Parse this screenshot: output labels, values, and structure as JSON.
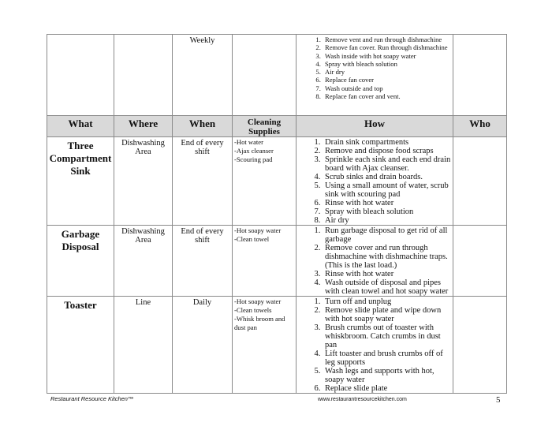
{
  "cont_row": {
    "when": "Weekly",
    "how": [
      "Remove vent and run through dishmachine",
      "Remove fan cover. Run through dishmachine",
      "Wash inside with hot soapy water",
      "Spray with bleach solution",
      "Air dry",
      "Replace fan cover",
      "Wash outside and top",
      "Replace fan cover and vent."
    ]
  },
  "headers": [
    "What",
    "Where",
    "When",
    "Cleaning Supplies",
    "How",
    "Who"
  ],
  "rows": [
    {
      "what": "Three Compartment Sink",
      "where": "Dishwashing Area",
      "when": "End of every shift",
      "supplies": [
        "-Hot water",
        "-Ajax cleanser",
        "-Scouring pad"
      ],
      "how": [
        "Drain sink compartments",
        "Remove and dispose food scraps",
        "Sprinkle each sink and each end drain board with Ajax cleanser.",
        "Scrub sinks and drain boards.",
        "Using a small amount of water, scrub sink with scouring pad",
        "Rinse with hot water",
        "Spray with bleach solution",
        "Air dry"
      ]
    },
    {
      "what": "Garbage Disposal",
      "where": "Dishwashing Area",
      "when": "End of every shift",
      "supplies": [
        "-Hot soapy water",
        "-Clean towel"
      ],
      "how": [
        "Run garbage disposal to get rid of all garbage",
        "Remove cover and run through dishmachine with dishmachine traps. (This is the last load.)",
        "Rinse with hot water",
        "Wash outside of disposal and pipes with clean towel and hot soapy water"
      ]
    },
    {
      "what": "Toaster",
      "where": "Line",
      "when": "Daily",
      "supplies": [
        "-Hot soapy water",
        "-Clean towels",
        "-Whisk broom and dust pan"
      ],
      "how": [
        "Turn off and unplug",
        "Remove slide plate and wipe down with hot soapy water",
        "Brush crumbs out of toaster with whiskbroom.  Catch crumbs in dust pan",
        "Lift toaster and brush crumbs off of leg supports",
        "Wash legs and supports with hot, soapy water",
        "Replace slide plate"
      ]
    }
  ],
  "footer": {
    "left": "Restaurant Resource Kitchen™",
    "center": "www.restaurantresourcekitchen.com",
    "page": "5"
  }
}
